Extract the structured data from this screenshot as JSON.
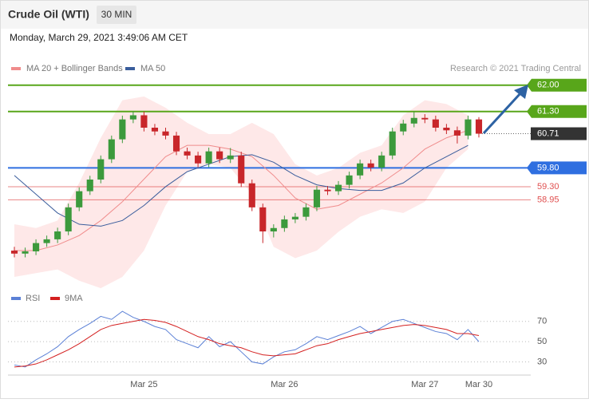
{
  "chart_data": {
    "type": "candlestick",
    "title": "Crude Oil (WTI)",
    "timeframe": "30 MIN",
    "date": "Monday, March 29, 2021 3:49:06 AM CET",
    "source": "Research © 2021 Trading Central",
    "categories": [
      null,
      null,
      null,
      null,
      null,
      null,
      null,
      null,
      null,
      null,
      null,
      null,
      "Mar 25",
      null,
      null,
      null,
      null,
      null,
      null,
      null,
      null,
      null,
      null,
      null,
      null,
      "Mar 26",
      null,
      null,
      null,
      null,
      null,
      null,
      null,
      null,
      null,
      null,
      null,
      null,
      "Mar 27",
      null,
      null,
      null,
      null,
      "Mar 30"
    ],
    "open": [
      57.6,
      57.52,
      57.58,
      57.8,
      57.9,
      58.11,
      58.75,
      59.18,
      59.49,
      60.03,
      60.56,
      61.09,
      61.2,
      60.87,
      60.77,
      60.66,
      60.24,
      60.13,
      59.92,
      60.24,
      60.03,
      60.13,
      59.39,
      58.75,
      58.11,
      58.2,
      58.43,
      58.5,
      58.75,
      59.22,
      59.18,
      59.35,
      59.6,
      59.92,
      59.81,
      60.13,
      60.77,
      60.98,
      61.13,
      61.09,
      60.87,
      60.8,
      60.66,
      61.09
    ],
    "high": [
      57.7,
      57.68,
      57.9,
      58.0,
      58.21,
      58.85,
      59.28,
      59.59,
      60.13,
      60.66,
      61.19,
      61.3,
      61.3,
      60.97,
      60.87,
      60.76,
      60.34,
      60.23,
      60.34,
      60.34,
      60.33,
      60.23,
      59.49,
      58.85,
      58.3,
      58.53,
      58.6,
      58.85,
      59.32,
      59.32,
      59.45,
      59.7,
      60.02,
      60.02,
      60.23,
      60.87,
      61.08,
      61.3,
      61.23,
      61.19,
      60.97,
      60.9,
      61.19,
      61.15
    ],
    "low": [
      57.42,
      57.42,
      57.48,
      57.7,
      57.8,
      58.01,
      58.65,
      59.08,
      59.39,
      59.93,
      60.46,
      60.99,
      60.77,
      60.67,
      60.56,
      60.14,
      60.03,
      59.82,
      59.82,
      59.93,
      59.93,
      59.29,
      58.65,
      57.8,
      57.95,
      58.1,
      58.33,
      58.4,
      58.65,
      59.08,
      59.08,
      59.25,
      59.5,
      59.71,
      59.71,
      60.03,
      60.67,
      60.88,
      60.99,
      60.77,
      60.7,
      60.45,
      60.56,
      60.61
    ],
    "close": [
      57.52,
      57.58,
      57.8,
      57.9,
      58.11,
      58.75,
      59.18,
      59.49,
      60.03,
      60.56,
      61.09,
      61.2,
      60.87,
      60.77,
      60.66,
      60.24,
      60.13,
      59.92,
      60.24,
      60.03,
      60.13,
      59.39,
      58.75,
      58.11,
      58.2,
      58.43,
      58.5,
      58.75,
      59.22,
      59.18,
      59.35,
      59.6,
      59.92,
      59.81,
      60.13,
      60.77,
      60.98,
      61.13,
      61.09,
      60.87,
      60.8,
      60.66,
      61.09,
      60.71
    ],
    "up_color": "#3c9a3c",
    "down_color": "#c8262a",
    "ylim": [
      56.73,
      62.25
    ],
    "indicator_x": [
      0,
      2,
      4,
      6,
      8,
      10,
      12,
      14,
      16,
      18,
      20,
      22,
      24,
      26,
      28,
      30,
      32,
      34,
      36,
      38,
      40,
      42
    ],
    "indicators": [
      {
        "name": "MA 20 + Bollinger Bands",
        "color": "#f08c8c",
        "band_color": "#fde0e0",
        "values": [
          57.6,
          57.6,
          57.75,
          58.0,
          58.4,
          58.9,
          59.5,
          60.1,
          60.4,
          60.4,
          60.3,
          60.1,
          59.6,
          59.0,
          58.7,
          58.8,
          59.1,
          59.4,
          59.8,
          60.3,
          60.6,
          60.8
        ],
        "upper": [
          58.3,
          58.2,
          58.4,
          59.4,
          60.6,
          61.6,
          61.7,
          61.4,
          61.0,
          60.7,
          60.7,
          61.0,
          60.7,
          59.9,
          59.6,
          59.8,
          60.2,
          60.4,
          61.2,
          61.6,
          61.5,
          61.2
        ],
        "lower": [
          56.9,
          57.0,
          57.1,
          56.8,
          56.6,
          56.9,
          57.6,
          58.8,
          59.7,
          59.9,
          59.8,
          59.1,
          57.7,
          57.4,
          57.6,
          58.1,
          58.5,
          58.7,
          58.6,
          58.9,
          59.8,
          60.3
        ]
      },
      {
        "name": "MA 50",
        "color": "#3a5d9c",
        "values": [
          59.6,
          59.1,
          58.6,
          58.3,
          58.25,
          58.4,
          58.8,
          59.3,
          59.7,
          59.9,
          60.1,
          60.15,
          59.95,
          59.6,
          59.35,
          59.25,
          59.2,
          59.2,
          59.4,
          59.8,
          60.1,
          60.4
        ]
      }
    ],
    "levels": [
      {
        "value": 62,
        "label": "62.00",
        "color": "#58a61a",
        "style": "box"
      },
      {
        "value": 61.3,
        "label": "61.30",
        "color": "#58a61a",
        "style": "box"
      },
      {
        "value": 60.71,
        "label": "60.71",
        "color": "#333333",
        "style": "current"
      },
      {
        "value": 59.8,
        "label": "59.80",
        "color": "#2f6fe0",
        "style": "box"
      },
      {
        "value": 59.3,
        "label": "59.30",
        "color": "#e05050",
        "style": "text"
      },
      {
        "value": 58.95,
        "label": "58.95",
        "color": "#e05050",
        "style": "text"
      }
    ],
    "rsi": {
      "ylim": [
        17,
        84
      ],
      "yticks": [
        30,
        50,
        70
      ],
      "series": [
        {
          "name": "RSI",
          "color": "#5b80d6",
          "values": [
            27,
            25,
            32,
            38,
            45,
            55,
            62,
            68,
            75,
            72,
            80,
            74,
            70,
            65,
            62,
            52,
            48,
            44,
            55,
            45,
            50,
            40,
            30,
            28,
            35,
            40,
            42,
            48,
            55,
            52,
            56,
            60,
            65,
            58,
            64,
            70,
            72,
            68,
            64,
            60,
            58,
            52,
            62,
            50
          ]
        },
        {
          "name": "9MA",
          "color": "#d42020",
          "values": [
            25,
            26,
            28,
            32,
            37,
            42,
            48,
            55,
            62,
            66,
            68,
            70,
            72,
            71,
            69,
            65,
            60,
            55,
            52,
            48,
            46,
            44,
            40,
            37,
            36,
            37,
            38,
            42,
            46,
            48,
            52,
            55,
            58,
            60,
            62,
            64,
            66,
            67,
            66,
            64,
            62,
            58,
            58,
            56
          ]
        }
      ]
    }
  }
}
